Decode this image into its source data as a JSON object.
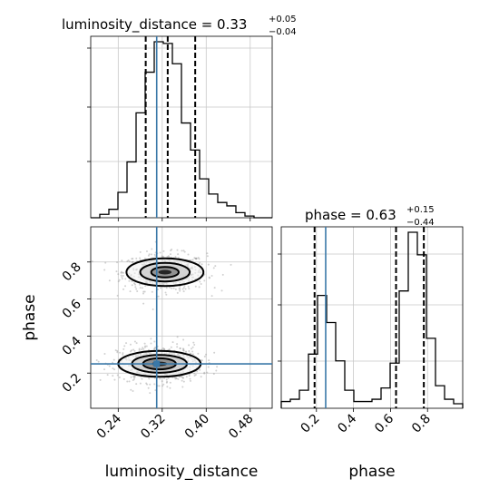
{
  "chart_data": {
    "type": "corner",
    "truth_color": "#3a78a8",
    "hist_color": "#000000",
    "grid": true,
    "params": [
      "luminosity_distance",
      "phase"
    ],
    "xlabels": {
      "luminosity_distance": "luminosity_distance",
      "phase": "phase"
    },
    "ylabels": {
      "phase": "phase"
    },
    "titles": {
      "luminosity_distance": {
        "main": "luminosity_distance = 0.33",
        "plus": "+0.05",
        "minus": "−0.04"
      },
      "phase": {
        "main": "phase = 0.63",
        "plus": "+0.15",
        "minus": "−0.44"
      }
    },
    "luminosity_distance": {
      "xlim": [
        0.19,
        0.52
      ],
      "ticks": [
        0.24,
        0.32,
        0.4,
        0.48
      ],
      "tick_labels": [
        "0.24",
        "0.32",
        "0.40",
        "0.48"
      ],
      "quantiles": [
        0.29,
        0.33,
        0.38
      ],
      "truth": 0.31,
      "hist": {
        "edges_start": 0.19,
        "bin_width": 0.0165,
        "counts": [
          0,
          2,
          5,
          15,
          33,
          62,
          86,
          104,
          103,
          91,
          56,
          40,
          23,
          14,
          9,
          7,
          3,
          1,
          0,
          0
        ]
      }
    },
    "phase": {
      "xlim": [
        0.01,
        0.99
      ],
      "ylim": [
        0.01,
        0.99
      ],
      "ticks": [
        0.2,
        0.4,
        0.6,
        0.8
      ],
      "tick_labels": [
        "0.2",
        "0.4",
        "0.6",
        "0.8"
      ],
      "quantiles": [
        0.19,
        0.63,
        0.78
      ],
      "truth": 0.25,
      "hist": {
        "edges_start": 0.01,
        "bin_width": 0.049,
        "counts": [
          3,
          4,
          8,
          24,
          50,
          38,
          21,
          8,
          3,
          3,
          4,
          9,
          20,
          52,
          78,
          68,
          31,
          10,
          4,
          2
        ]
      }
    },
    "density_2d": {
      "clusters": [
        {
          "x": 0.325,
          "y": 0.745,
          "levels": [
            [
              0.07,
              0.075
            ],
            [
              0.045,
              0.05
            ],
            [
              0.025,
              0.028
            ],
            [
              0.012,
              0.012
            ]
          ]
        },
        {
          "x": 0.315,
          "y": 0.25,
          "levels": [
            [
              0.075,
              0.07
            ],
            [
              0.05,
              0.048
            ],
            [
              0.03,
              0.03
            ],
            [
              0.014,
              0.012
            ]
          ]
        }
      ]
    }
  }
}
